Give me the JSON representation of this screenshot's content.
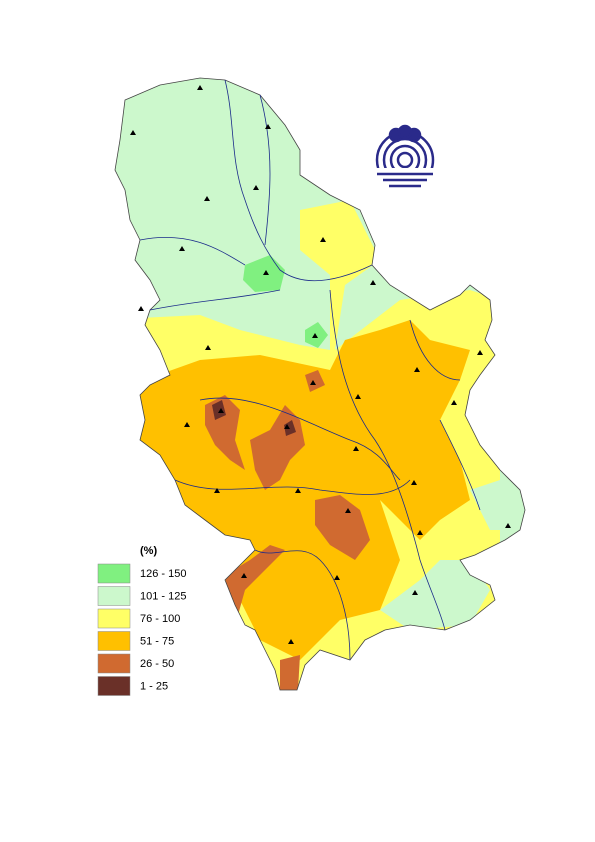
{
  "legend": {
    "title": "(%)",
    "items": [
      {
        "label": "126 - 150",
        "color": "#80f080"
      },
      {
        "label": "101 - 125",
        "color": "#ccf8cc"
      },
      {
        "label": "76 - 100",
        "color": "#ffff66"
      },
      {
        "label": "51 - 75",
        "color": "#ffc000"
      },
      {
        "label": "26 - 50",
        "color": "#d06a30"
      },
      {
        "label": "1 - 25",
        "color": "#6a3028"
      }
    ]
  }
}
